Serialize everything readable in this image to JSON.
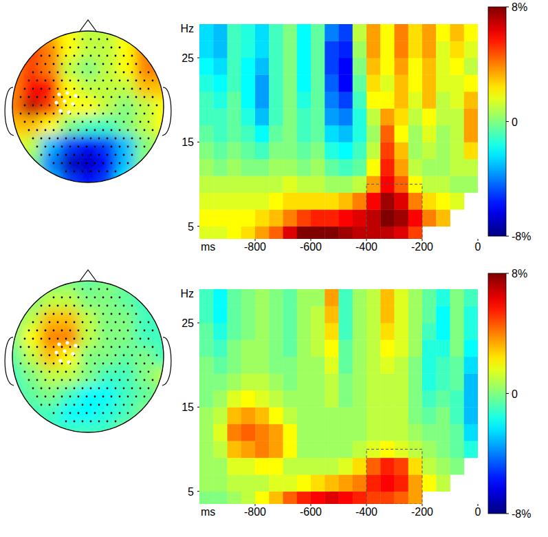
{
  "chart_data": [
    {
      "type": "topomap",
      "x": [
        -1,
        -0.75,
        -0.5,
        -0.25,
        0,
        0.25,
        0.5,
        0.75,
        1
      ],
      "y": [
        1,
        0.75,
        0.5,
        0.25,
        0,
        -0.25,
        -0.5,
        -0.75,
        -1
      ],
      "values": [
        [
          4,
          4,
          3,
          2,
          1,
          1,
          2,
          3,
          3
        ],
        [
          4,
          5,
          4,
          2,
          1,
          1,
          2,
          4,
          4
        ],
        [
          4,
          5,
          4,
          1,
          0,
          1,
          2,
          4,
          4
        ],
        [
          4,
          6,
          6,
          2,
          1,
          1,
          1,
          3,
          3
        ],
        [
          4,
          7,
          5,
          2,
          2,
          1,
          0,
          1,
          2
        ],
        [
          3,
          3,
          2,
          0,
          -1,
          -1,
          0,
          1,
          2
        ],
        [
          2,
          1,
          -3,
          -5,
          -6,
          -5,
          -3,
          0,
          1
        ],
        [
          1,
          0,
          -4,
          -7,
          -7,
          -6,
          -3,
          0,
          1
        ],
        [
          1,
          0,
          -3,
          -5,
          -6,
          -5,
          -2,
          0,
          1
        ]
      ],
      "color_range": [
        -8,
        8
      ]
    },
    {
      "type": "heatmap",
      "x_label": "ms",
      "y_label": "Hz",
      "x": [
        -975,
        -925,
        -875,
        -825,
        -775,
        -725,
        -675,
        -625,
        -575,
        -525,
        -475,
        -425,
        -375,
        -325,
        -275,
        -225,
        -175,
        -125,
        -75,
        -25
      ],
      "y": [
        4,
        6,
        8,
        10,
        12,
        14,
        16,
        18,
        20,
        22,
        24,
        26,
        28
      ],
      "values": [
        [
          1.5,
          1.5,
          2,
          2.5,
          3.5,
          4.5,
          6.5,
          8,
          8,
          8,
          7.5,
          7,
          7,
          7,
          6.5,
          5,
          null,
          null,
          null,
          null
        ],
        [
          2,
          2,
          2,
          2,
          2.5,
          3,
          4,
          5,
          5.5,
          5.5,
          6,
          6.5,
          7,
          8,
          7.5,
          6,
          4,
          3,
          null,
          null
        ],
        [
          1.5,
          1.5,
          1.5,
          1.5,
          1.5,
          2,
          2.5,
          2.5,
          2.5,
          2.5,
          3,
          4,
          6,
          7.5,
          6.5,
          4,
          2.5,
          2,
          1.5,
          null
        ],
        [
          1,
          1,
          1,
          1,
          1,
          1,
          1.5,
          1,
          1,
          0.5,
          0.5,
          1,
          3.5,
          6,
          4.5,
          2,
          1,
          1,
          0.5,
          0.5
        ],
        [
          0.5,
          0,
          0.5,
          0,
          0,
          0.5,
          0.5,
          0,
          0.5,
          -0.5,
          -1,
          -0.5,
          2,
          5.5,
          3.5,
          1,
          0.5,
          0.5,
          1,
          1
        ],
        [
          0,
          -0.5,
          0,
          -0.5,
          -1,
          0,
          0,
          -0.5,
          0,
          -1.5,
          -2,
          -1,
          1,
          5,
          3,
          0.5,
          1,
          0.5,
          1,
          2.5
        ],
        [
          -0.5,
          -1,
          -0.5,
          -1,
          -2,
          -0.5,
          0,
          -1,
          -0.5,
          -2.5,
          -3,
          -1.5,
          0.5,
          4.5,
          2,
          0.5,
          1.5,
          0.5,
          1,
          3.5
        ],
        [
          -1,
          -1,
          -0.5,
          -1.5,
          -3,
          -1,
          0,
          -1,
          -0.5,
          -3.5,
          -4,
          -1.5,
          1,
          3.5,
          2.5,
          1,
          2,
          1,
          1,
          3.5
        ],
        [
          -1,
          -1.5,
          -0.5,
          -2,
          -3.5,
          -1,
          0,
          -1.5,
          -0.5,
          -4,
          -5,
          -1,
          2,
          2,
          3,
          1.5,
          3,
          1,
          1.5,
          3
        ],
        [
          -1.5,
          -2,
          -1,
          -2,
          -3.5,
          -1,
          0,
          -2,
          -0.5,
          -4.5,
          -6,
          -0.5,
          2.5,
          1.5,
          3,
          2,
          3,
          1.5,
          1.5,
          2
        ],
        [
          -2,
          -2.5,
          -1,
          -2,
          -3,
          -1,
          0,
          -2,
          -0.5,
          -5,
          -6,
          0,
          3,
          2,
          3.5,
          2,
          3,
          1.5,
          2,
          1
        ],
        [
          -2.5,
          -3,
          -1,
          -1.5,
          -2.5,
          -1,
          0,
          -2,
          -0.5,
          -5,
          -5.5,
          0.5,
          3.5,
          2,
          4,
          2.5,
          3.5,
          1.5,
          2.5,
          1.5
        ],
        [
          -2.5,
          -3,
          -1,
          -1.5,
          -2.5,
          -1,
          0,
          -2,
          -0.5,
          -4,
          -5,
          1,
          3.5,
          2,
          4,
          2.5,
          3.5,
          2,
          3,
          2
        ]
      ],
      "xlim": [
        -1000,
        0
      ],
      "ylim": [
        3.5,
        29
      ],
      "xticks": [
        -800,
        -600,
        -400,
        -200,
        0
      ],
      "yticks": [
        5,
        15,
        25
      ],
      "highlight": {
        "x": [
          -400,
          -200
        ],
        "y": [
          3.5,
          10
        ]
      },
      "color_range": [
        -8,
        8
      ],
      "color_ticks": [
        {
          "value": 8,
          "label": "8%"
        },
        0,
        {
          "value": -8,
          "label": "-8%"
        }
      ]
    },
    {
      "type": "topomap",
      "x": [
        -1,
        -0.75,
        -0.5,
        -0.25,
        0,
        0.25,
        0.5,
        0.75,
        1
      ],
      "y": [
        1,
        0.75,
        0.5,
        0.25,
        0,
        -0.25,
        -0.5,
        -0.75,
        -1
      ],
      "values": [
        [
          0,
          0,
          0,
          0,
          -0.5,
          0,
          -0.5,
          0,
          0
        ],
        [
          0,
          0,
          1,
          1,
          0,
          0,
          -0.5,
          -1,
          0
        ],
        [
          0,
          1,
          3,
          3,
          1,
          0,
          0,
          -1,
          -1
        ],
        [
          0,
          2,
          4,
          4,
          1,
          0,
          0,
          -1,
          -1
        ],
        [
          -0.5,
          1,
          3,
          2,
          0,
          0,
          -0.5,
          0,
          -1
        ],
        [
          -1,
          0,
          1,
          1,
          0,
          -1,
          -1,
          0,
          1
        ],
        [
          -1,
          -0.5,
          0,
          -1,
          -2,
          -2,
          -1,
          -0.5,
          0
        ],
        [
          0,
          -1,
          -1,
          -2,
          -2,
          -1.5,
          -1,
          0,
          0
        ],
        [
          1,
          0,
          -1,
          -1,
          -1,
          -1,
          0,
          0,
          0
        ]
      ],
      "color_range": [
        -8,
        8
      ]
    },
    {
      "type": "heatmap",
      "x_label": "ms",
      "y_label": "Hz",
      "x": [
        -975,
        -925,
        -875,
        -825,
        -775,
        -725,
        -675,
        -625,
        -575,
        -525,
        -475,
        -425,
        -375,
        -325,
        -275,
        -225,
        -175,
        -125,
        -75,
        -25
      ],
      "y": [
        4,
        6,
        8,
        10,
        12,
        14,
        16,
        18,
        20,
        22,
        24,
        26,
        28
      ],
      "values": [
        [
          0,
          0,
          0.5,
          1,
          2,
          3,
          4.5,
          5.5,
          6,
          6.5,
          6,
          5.5,
          5,
          5,
          4.5,
          3.5,
          null,
          null,
          null,
          null
        ],
        [
          0.5,
          0.5,
          1,
          1,
          1,
          1.5,
          1.5,
          2,
          2.5,
          3,
          3.5,
          4,
          5.5,
          6,
          5.5,
          3.5,
          2,
          1,
          null,
          null
        ],
        [
          0.5,
          0.5,
          1.5,
          1.5,
          2,
          2,
          1,
          1,
          1,
          1,
          1.5,
          2.5,
          4.5,
          5.5,
          5,
          2.5,
          1,
          0.5,
          0,
          null
        ],
        [
          0.5,
          1,
          3,
          3.5,
          4,
          3.5,
          2,
          0.5,
          0.5,
          0.5,
          0.5,
          1,
          1.5,
          2,
          1.5,
          1,
          0.5,
          0,
          -0.5,
          -1.5
        ],
        [
          0.5,
          1.5,
          4,
          4.5,
          4,
          3.5,
          2,
          0.5,
          0.5,
          0.5,
          0.5,
          0.5,
          1,
          1,
          1,
          0.5,
          0,
          0,
          -0.5,
          -2.5
        ],
        [
          0.5,
          1,
          3,
          3.5,
          3,
          2,
          1,
          0.5,
          0.5,
          0.5,
          0.5,
          0.5,
          1,
          1,
          1,
          0,
          -0.5,
          0,
          -1,
          -3
        ],
        [
          0,
          0.5,
          1.5,
          2,
          1.5,
          1,
          0.5,
          0.5,
          0.5,
          1,
          0,
          0.5,
          1,
          1,
          1,
          0,
          -1,
          -0.5,
          -1,
          -3
        ],
        [
          0,
          0,
          0.5,
          1,
          1,
          0.5,
          0,
          0.5,
          0.5,
          1,
          0,
          0.5,
          1,
          1,
          1,
          0,
          -1.5,
          -1,
          -0.5,
          -3
        ],
        [
          0,
          -0.5,
          0,
          0.5,
          0.5,
          0,
          0,
          0.5,
          0.5,
          1.5,
          -0.5,
          0.5,
          1,
          1.5,
          1,
          0,
          -1.5,
          -1,
          -0.5,
          -2.5
        ],
        [
          -0.5,
          -1,
          0,
          0.5,
          0.5,
          0,
          -0.5,
          0.5,
          1,
          2,
          -0.5,
          0.5,
          1,
          2,
          1.5,
          0.5,
          -1.5,
          -1.5,
          0,
          -2
        ],
        [
          -0.5,
          -1.5,
          -0.5,
          0,
          0.5,
          0,
          -0.5,
          0.5,
          1,
          2.5,
          -1,
          0.5,
          1,
          2.5,
          1.5,
          0.5,
          -1,
          -2,
          0,
          -1.5
        ],
        [
          -1,
          -2,
          -0.5,
          0,
          0.5,
          0,
          -0.5,
          0.5,
          1,
          3,
          -1,
          0.5,
          1,
          3,
          1.5,
          0.5,
          -0.5,
          -2,
          0,
          -1.5
        ],
        [
          -1,
          -2,
          -0.5,
          0,
          0.5,
          0,
          -0.5,
          0.5,
          0.5,
          3.5,
          -1,
          0.5,
          1,
          3,
          1.5,
          0.5,
          -0.5,
          -1.5,
          0,
          -1
        ]
      ],
      "xlim": [
        -1000,
        0
      ],
      "ylim": [
        3.5,
        29
      ],
      "xticks": [
        -800,
        -600,
        -400,
        -200,
        0
      ],
      "yticks": [
        5,
        15,
        25
      ],
      "highlight": {
        "x": [
          -400,
          -200
        ],
        "y": [
          3.5,
          10
        ]
      },
      "color_range": [
        -8,
        8
      ],
      "color_ticks": [
        {
          "value": 8,
          "label": "8%"
        },
        0,
        {
          "value": -8,
          "label": "-8%"
        }
      ]
    }
  ]
}
